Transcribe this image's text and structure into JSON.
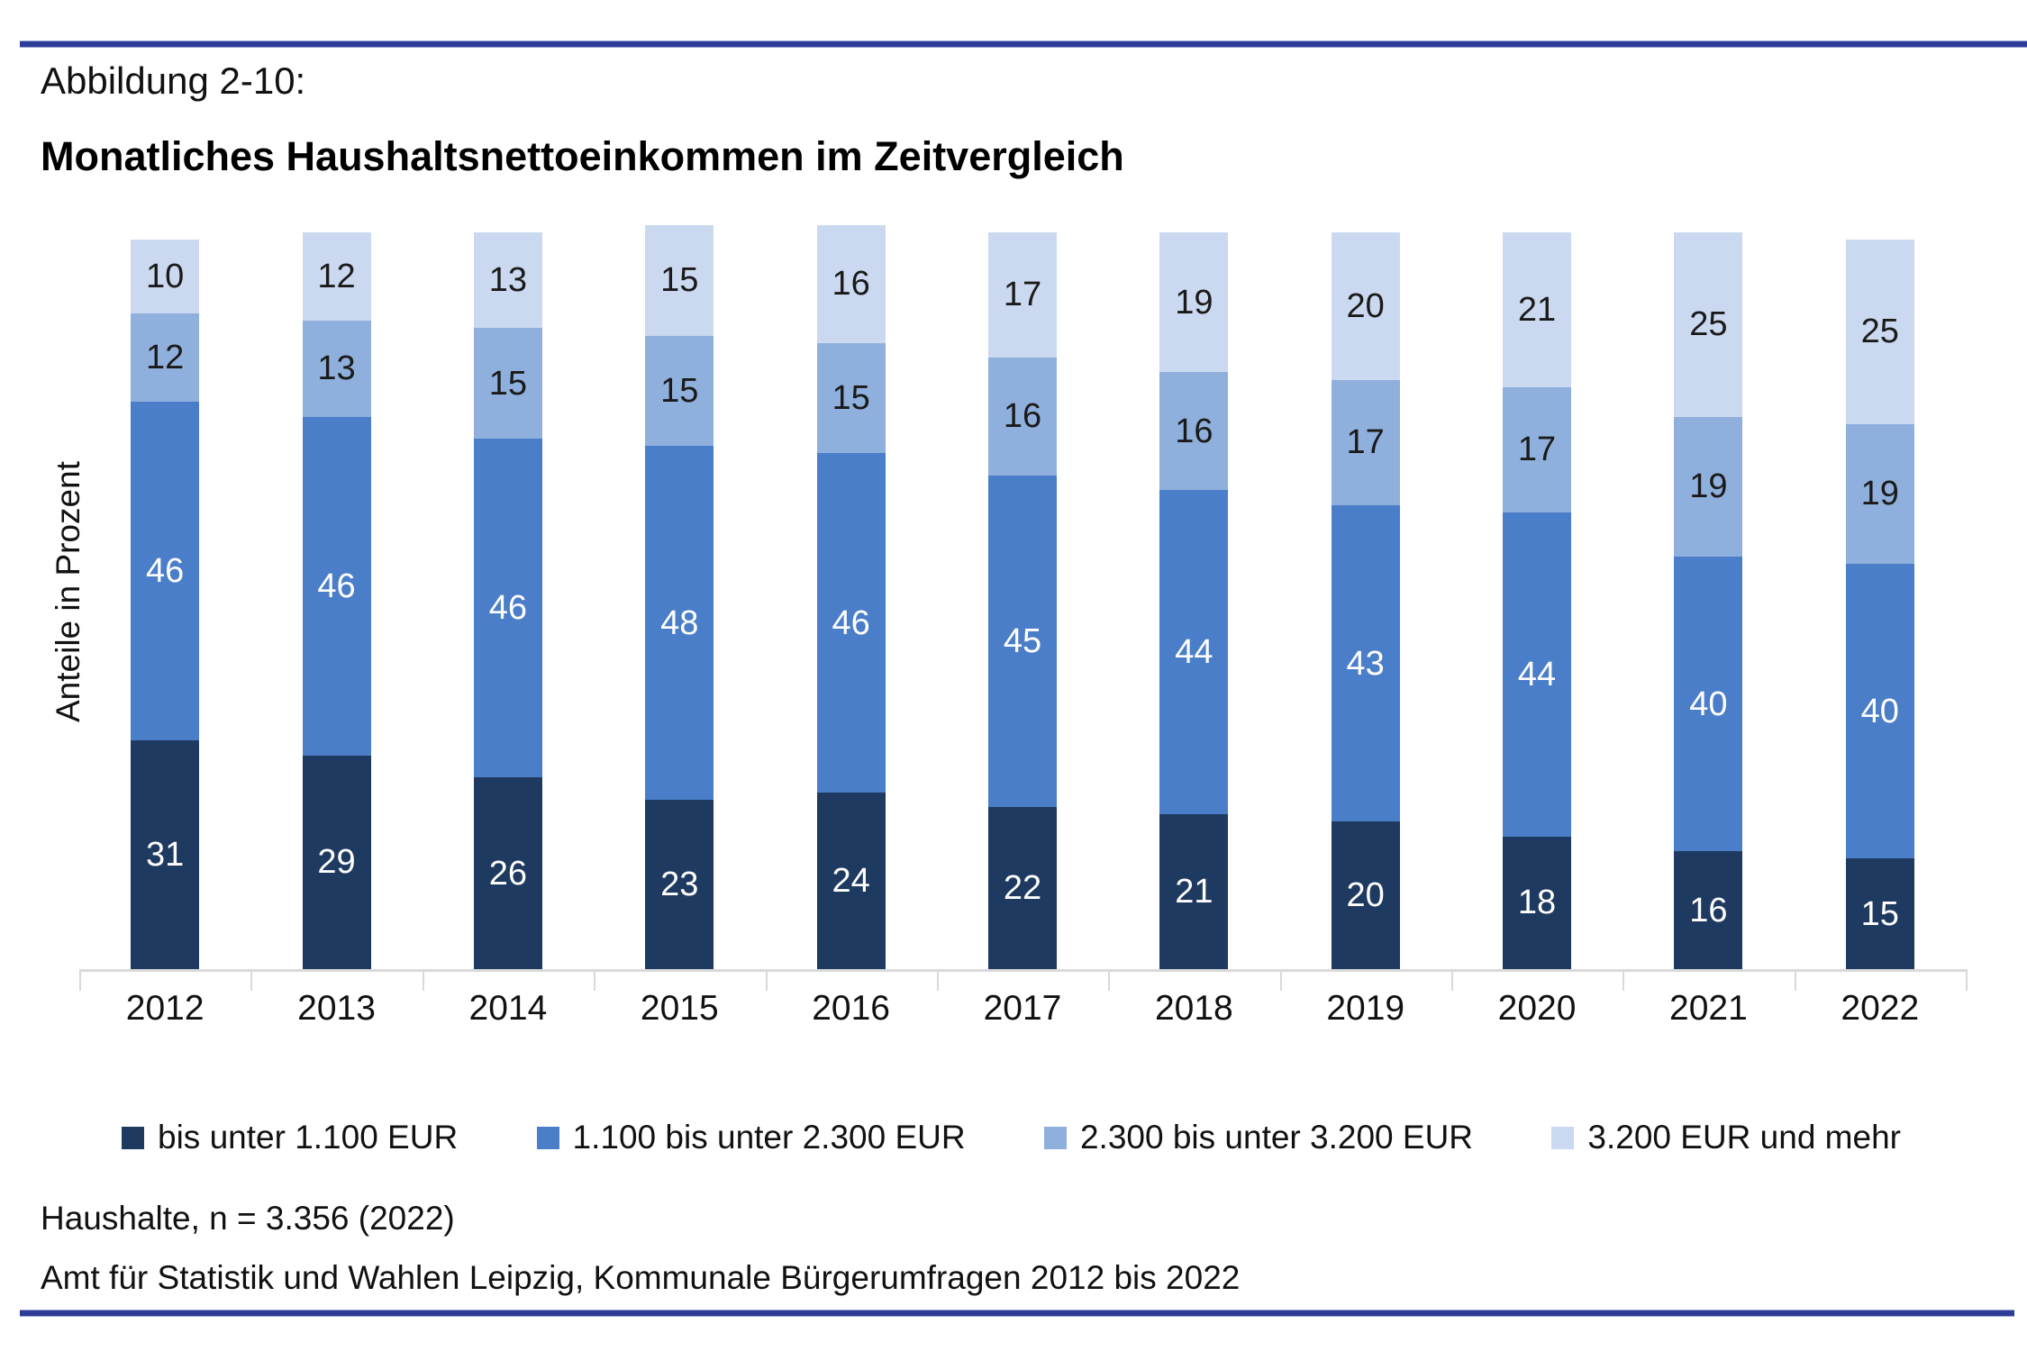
{
  "page": {
    "figure_label": "Abbildung 2-10:",
    "title": "Monatliches Haushaltsnettoeinkommen im Zeitvergleich",
    "footnote_line1": "Haushalte, n = 3.356 (2022)",
    "footnote_line2": "Amt für Statistik und Wahlen Leipzig, Kommunale Bürgerumfragen 2012 bis 2022",
    "accent_rule_color": "#2d3c96"
  },
  "chart_data": {
    "type": "bar",
    "stacked": true,
    "unit": "percent",
    "title": "Monatliches Haushaltsnettoeinkommen im Zeitvergleich",
    "xlabel": "",
    "ylabel": "Anteile in Prozent",
    "ylim": [
      0,
      101
    ],
    "grid": false,
    "legend_position": "bottom",
    "axis_color": "#d9d9d9",
    "categories": [
      "2012",
      "2013",
      "2014",
      "2015",
      "2016",
      "2017",
      "2018",
      "2019",
      "2020",
      "2021",
      "2022"
    ],
    "series": [
      {
        "name": "bis unter 1.100 EUR",
        "color": "#1f3a60",
        "label_color": "#ffffff",
        "values": [
          31,
          29,
          26,
          23,
          24,
          22,
          21,
          20,
          18,
          16,
          15
        ]
      },
      {
        "name": "1.100 bis unter 2.300 EUR",
        "color": "#4b7ec8",
        "label_color": "#ffffff",
        "values": [
          46,
          46,
          46,
          48,
          46,
          45,
          44,
          43,
          44,
          40,
          40
        ]
      },
      {
        "name": "2.300 bis unter 3.200 EUR",
        "color": "#8fafdc",
        "label_color": "#1a1a1a",
        "values": [
          12,
          13,
          15,
          15,
          15,
          16,
          16,
          17,
          17,
          19,
          19
        ]
      },
      {
        "name": "3.200 EUR und mehr",
        "color": "#cbd9f0",
        "label_color": "#1a1a1a",
        "values": [
          10,
          12,
          13,
          15,
          16,
          17,
          19,
          20,
          21,
          25,
          25
        ]
      }
    ]
  }
}
